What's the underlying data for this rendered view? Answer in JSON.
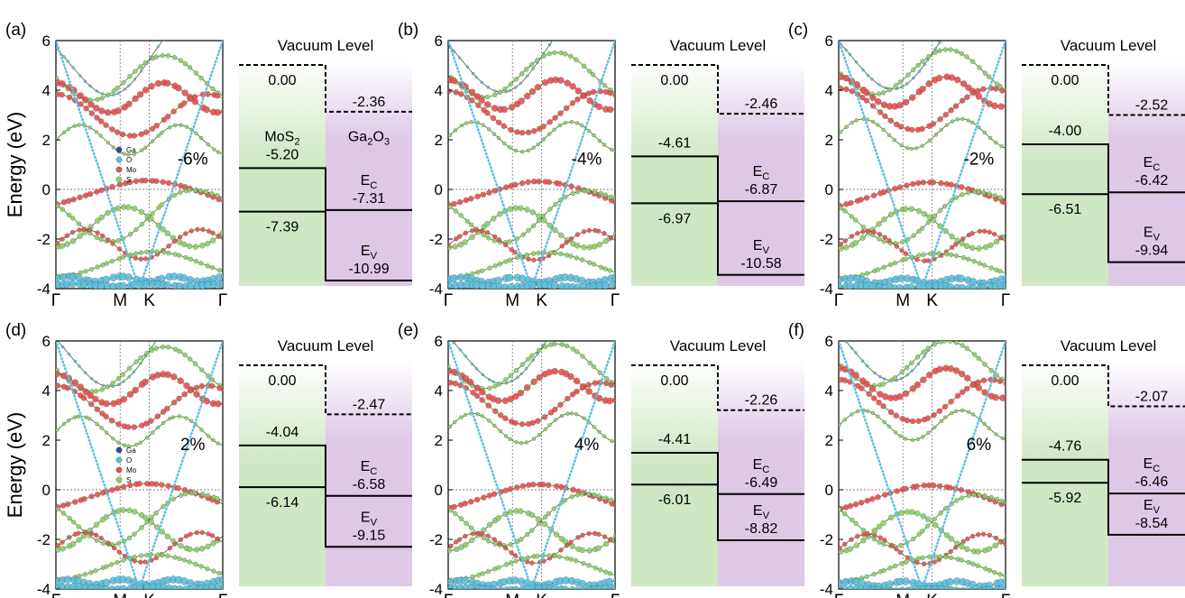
{
  "figure": {
    "y_axis_label": "Energy (eV)",
    "energy_ticks": [
      "-4",
      "-2",
      "0",
      "2",
      "4",
      "6"
    ],
    "k_labels": [
      "Γ",
      "M",
      "K",
      "Γ"
    ],
    "legend": {
      "entries": [
        {
          "label": "Ga",
          "color": "#2b4ea2"
        },
        {
          "label": "O",
          "color": "#5cc0df"
        },
        {
          "label": "Mo",
          "color": "#e8534f"
        },
        {
          "label": "S",
          "color": "#8fd16a"
        }
      ]
    },
    "diagram": {
      "vacuum_label": "Vacuum Level",
      "vacuum_value": "0.00",
      "mos2_label_base": "MoS",
      "mos2_label_sub": "2",
      "ga2o3_label_a": "Ga",
      "ga2o3_label_sub1": "2",
      "ga2o3_label_b": "O",
      "ga2o3_label_sub2": "3",
      "ec_base": "E",
      "ec_sub": "C",
      "ev_base": "E",
      "ev_sub": "V"
    },
    "colors": {
      "mos2_fill": "#cfe8c3",
      "ga2o3_fill": "#ddc9e6",
      "ga": "#2b4ea2",
      "o": "#5cc0df",
      "mo": "#e8534f",
      "s": "#8fd16a",
      "band_line": "#2e6e2a"
    }
  },
  "chart_data": [
    {
      "type": "band_alignment",
      "panel": "(a)",
      "strain": "-6%",
      "energy_ylim": [
        -4,
        6
      ],
      "show_legend": true,
      "show_ylabel": true,
      "show_layer_labels": true,
      "mos2": {
        "vacuum": "0.00",
        "cbm": "-5.20",
        "vbm": "-7.39",
        "cbm_value": -5.2,
        "vbm_value": -7.39
      },
      "ga2o3": {
        "vacuum": "-2.36",
        "cbm": "-7.31",
        "vbm": "-10.99",
        "vacuum_value": -2.36,
        "cbm_value": -7.31,
        "vbm_value": -10.99
      }
    },
    {
      "type": "band_alignment",
      "panel": "(b)",
      "strain": "-4%",
      "energy_ylim": [
        -4,
        6
      ],
      "show_legend": false,
      "show_ylabel": false,
      "show_layer_labels": false,
      "mos2": {
        "vacuum": "0.00",
        "cbm": "-4.61",
        "vbm": "-6.97",
        "cbm_value": -4.61,
        "vbm_value": -6.97
      },
      "ga2o3": {
        "vacuum": "-2.46",
        "cbm": "-6.87",
        "vbm": "-10.58",
        "vacuum_value": -2.46,
        "cbm_value": -6.87,
        "vbm_value": -10.58
      }
    },
    {
      "type": "band_alignment",
      "panel": "(c)",
      "strain": "-2%",
      "energy_ylim": [
        -4,
        6
      ],
      "show_legend": false,
      "show_ylabel": false,
      "show_layer_labels": false,
      "mos2": {
        "vacuum": "0.00",
        "cbm": "-4.00",
        "vbm": "-6.51",
        "cbm_value": -4.0,
        "vbm_value": -6.51
      },
      "ga2o3": {
        "vacuum": "-2.52",
        "cbm": "-6.42",
        "vbm": "-9.94",
        "vacuum_value": -2.52,
        "cbm_value": -6.42,
        "vbm_value": -9.94
      }
    },
    {
      "type": "band_alignment",
      "panel": "(d)",
      "strain": "2%",
      "energy_ylim": [
        -4,
        6
      ],
      "show_legend": true,
      "show_ylabel": true,
      "show_layer_labels": false,
      "mos2": {
        "vacuum": "0.00",
        "cbm": "-4.04",
        "vbm": "-6.14",
        "cbm_value": -4.04,
        "vbm_value": -6.14
      },
      "ga2o3": {
        "vacuum": "-2.47",
        "cbm": "-6.58",
        "vbm": "-9.15",
        "vacuum_value": -2.47,
        "cbm_value": -6.58,
        "vbm_value": -9.15
      }
    },
    {
      "type": "band_alignment",
      "panel": "(e)",
      "strain": "4%",
      "energy_ylim": [
        -4,
        6
      ],
      "show_legend": false,
      "show_ylabel": false,
      "show_layer_labels": false,
      "mos2": {
        "vacuum": "0.00",
        "cbm": "-4.41",
        "vbm": "-6.01",
        "cbm_value": -4.41,
        "vbm_value": -6.01
      },
      "ga2o3": {
        "vacuum": "-2.26",
        "cbm": "-6.49",
        "vbm": "-8.82",
        "vacuum_value": -2.26,
        "cbm_value": -6.49,
        "vbm_value": -8.82
      }
    },
    {
      "type": "band_alignment",
      "panel": "(f)",
      "strain": "6%",
      "energy_ylim": [
        -4,
        6
      ],
      "show_legend": false,
      "show_ylabel": false,
      "show_layer_labels": false,
      "mos2": {
        "vacuum": "0.00",
        "cbm": "-4.76",
        "vbm": "-5.92",
        "cbm_value": -4.76,
        "vbm_value": -5.92
      },
      "ga2o3": {
        "vacuum": "-2.07",
        "cbm": "-6.46",
        "vbm": "-8.54",
        "vacuum_value": -2.07,
        "cbm_value": -6.46,
        "vbm_value": -8.54
      }
    }
  ]
}
